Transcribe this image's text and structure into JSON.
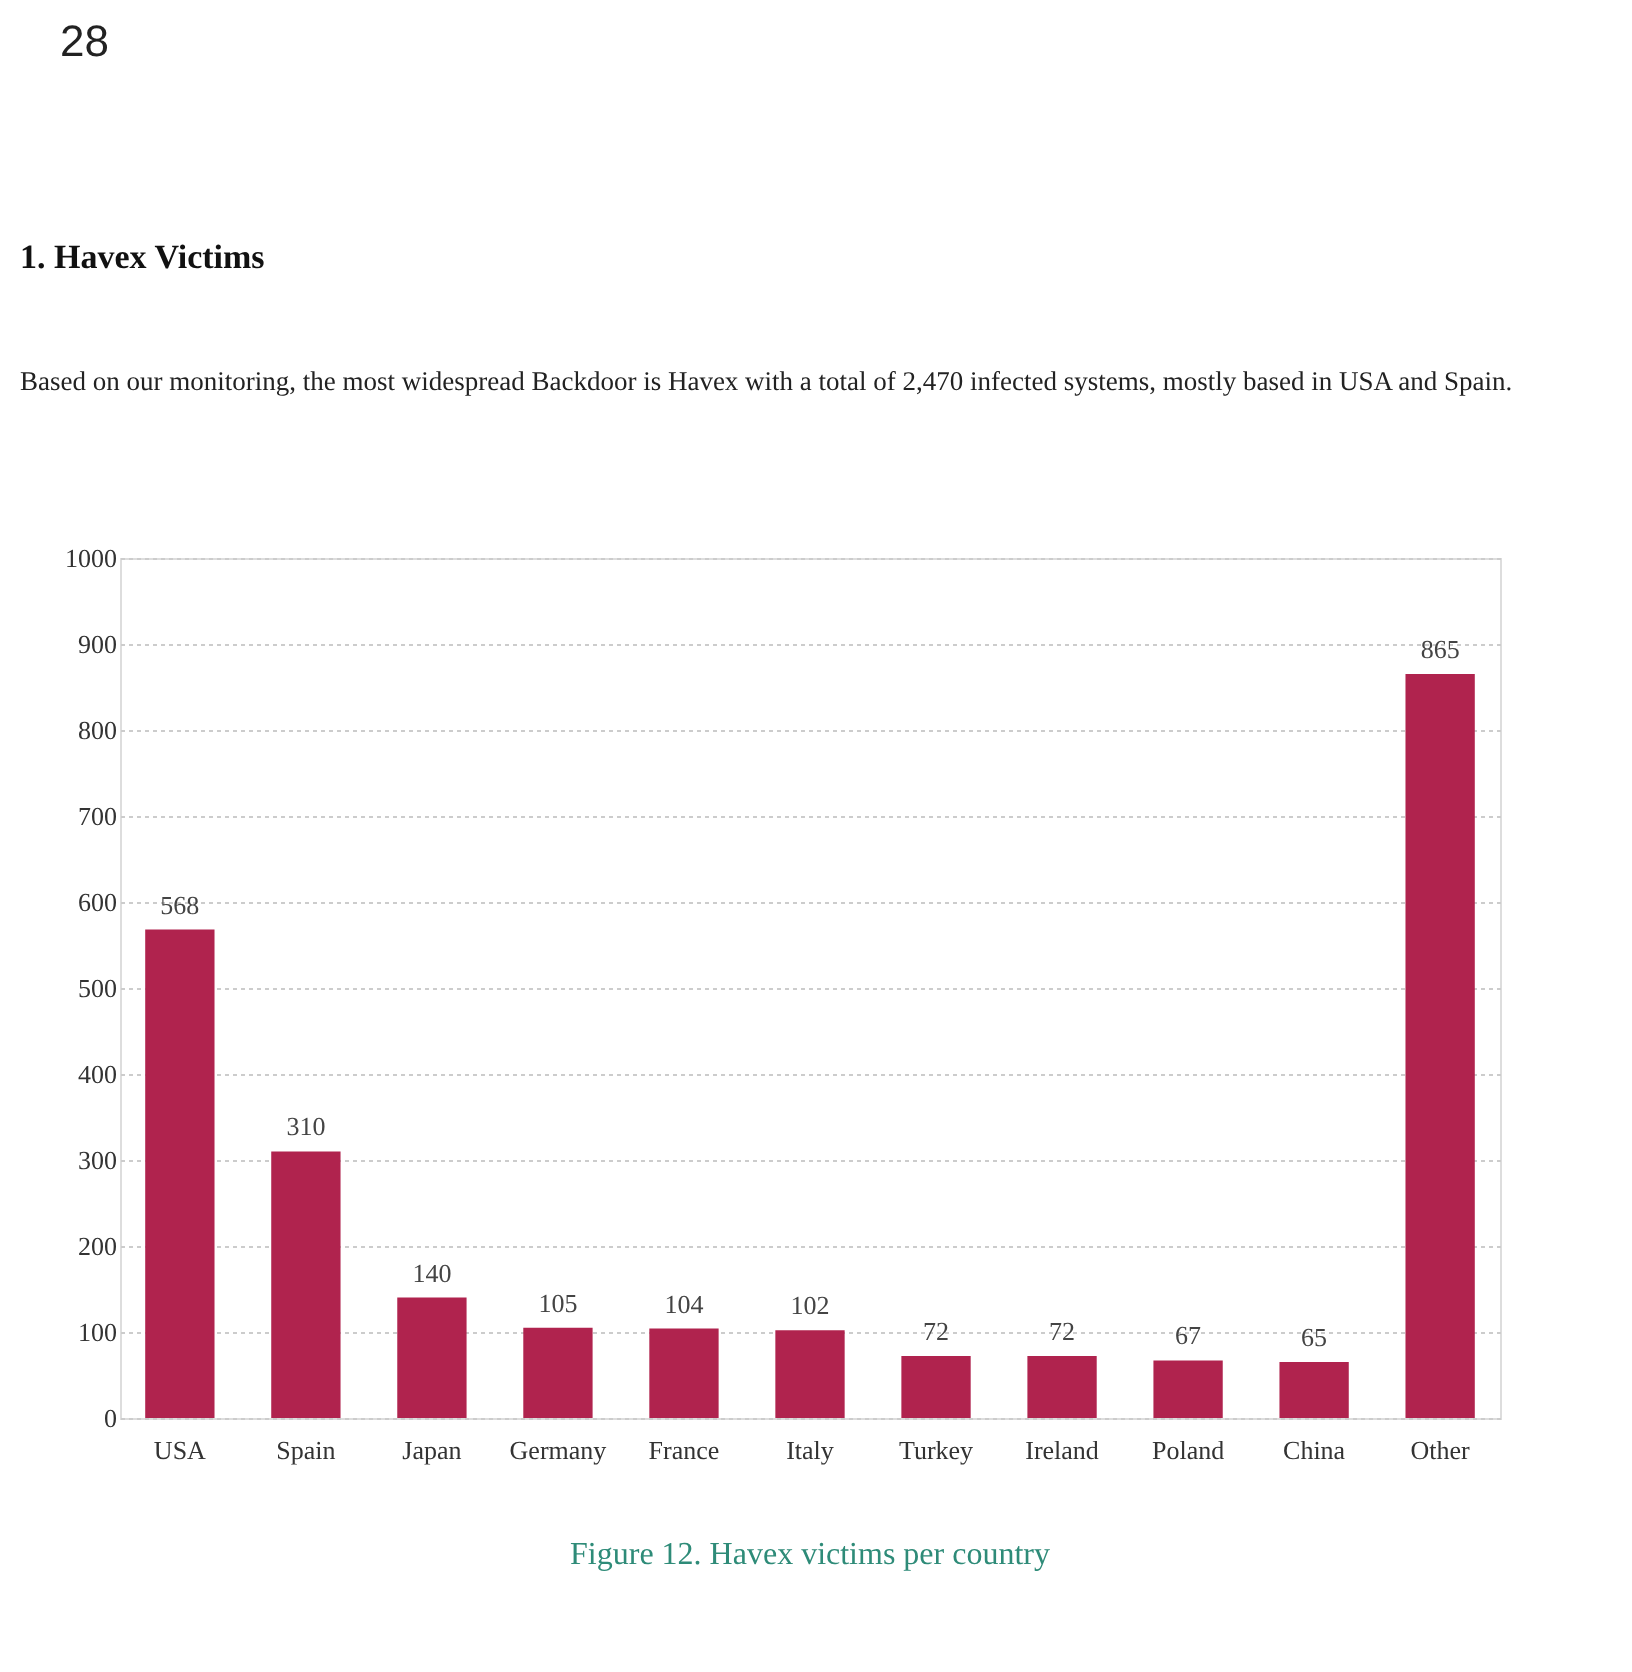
{
  "chart_data": {
    "type": "bar",
    "title": "1. Havex Victims",
    "subtitle": "Based on our monitoring, the most widespread Backdoor is Havex with a total of 2,470 infected systems, mostly based in USA and Spain.",
    "categories": [
      "USA",
      "Spain",
      "Japan",
      "Germany",
      "France",
      "Italy",
      "Turkey",
      "Ireland",
      "Poland",
      "China",
      "Other"
    ],
    "values": [
      568,
      310,
      140,
      105,
      104,
      102,
      72,
      72,
      67,
      65,
      865
    ],
    "color": "#b0234e",
    "ylim": [
      0,
      1000
    ],
    "yticks": [
      0,
      100,
      200,
      300,
      400,
      500,
      600,
      700,
      800,
      900,
      1000
    ],
    "grid": "y",
    "data_labels": true,
    "annotations": [
      "28",
      "Figure 12. Havex victims per country"
    ]
  }
}
